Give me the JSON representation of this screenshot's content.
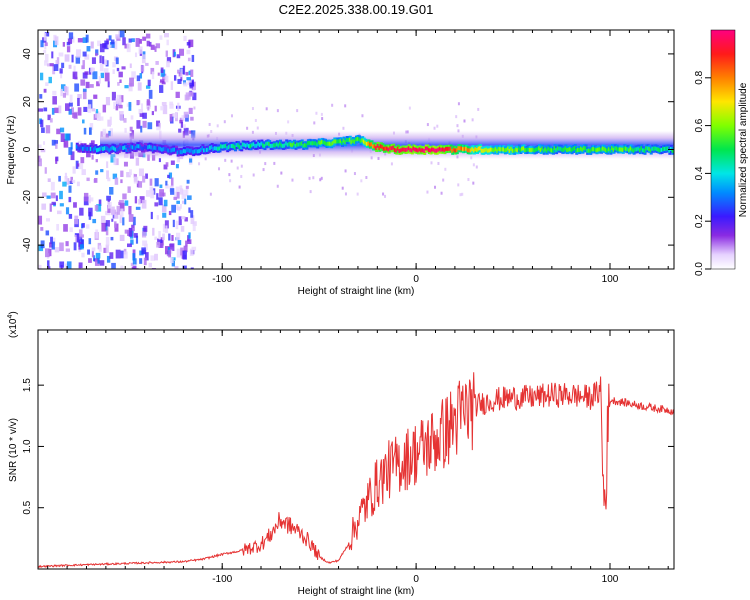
{
  "title": "C2E2.2025.338.00.19.G01",
  "colors": {
    "snr_line": "#e53333",
    "background": "#ffffff",
    "axis": "#000000"
  },
  "chart_data": [
    {
      "type": "heatmap",
      "xlabel": "Height of straight line (km)",
      "ylabel": "Frequency (Hz)",
      "xlim": [
        -195,
        133
      ],
      "ylim": [
        -50,
        50
      ],
      "x_ticks": [
        -100,
        0,
        100
      ],
      "x_tick_labels": [
        "-100",
        "0",
        "100"
      ],
      "y_ticks": [
        -40,
        -20,
        0,
        20,
        40
      ],
      "y_tick_labels": [
        "-40",
        "-20",
        "0",
        "20",
        "40"
      ],
      "colorbar": {
        "label": "Normalized spectral amplitude",
        "range": [
          0,
          1
        ],
        "ticks": [
          0.0,
          0.2,
          0.4,
          0.6,
          0.8
        ],
        "tick_labels": [
          "0.0",
          "0.2",
          "0.4",
          "0.6",
          "0.8"
        ],
        "colormap": "rainbow (white-purple-blue-cyan-green-yellow-red-magenta)"
      },
      "ridge": {
        "description": "main spectral line near 0 Hz",
        "x": [
          -175,
          -160,
          -140,
          -120,
          -100,
          -80,
          -60,
          -40,
          -30,
          -20,
          -10,
          0,
          10,
          20,
          40,
          60,
          80,
          100,
          133
        ],
        "freq": [
          1,
          0,
          1,
          -1,
          1,
          2,
          2,
          3,
          4,
          1,
          0,
          0,
          0,
          0,
          0,
          0,
          0,
          0,
          0
        ],
        "amplitude": [
          0.3,
          0.35,
          0.3,
          0.3,
          0.4,
          0.45,
          0.5,
          0.55,
          0.55,
          0.9,
          0.95,
          1.0,
          1.0,
          0.85,
          0.6,
          0.55,
          0.5,
          0.55,
          0.45
        ]
      }
    },
    {
      "type": "line",
      "xlabel": "Height of straight line (km)",
      "ylabel": "SNR (10 * v/v)",
      "y_scale_label": "(x10",
      "y_scale_exponent": "4",
      "xlim": [
        -195,
        133
      ],
      "ylim": [
        0,
        1.95
      ],
      "x_ticks": [
        -100,
        0,
        100
      ],
      "x_tick_labels": [
        "-100",
        "0",
        "100"
      ],
      "y_ticks": [
        0.5,
        1.0,
        1.5
      ],
      "y_tick_labels": [
        "0.5",
        "1.0",
        "1.5"
      ],
      "series": [
        {
          "name": "SNR",
          "x": [
            -195,
            -180,
            -160,
            -140,
            -120,
            -110,
            -100,
            -90,
            -80,
            -75,
            -70,
            -65,
            -60,
            -55,
            -50,
            -45,
            -40,
            -35,
            -30,
            -25,
            -20,
            -15,
            -10,
            -5,
            0,
            5,
            10,
            15,
            20,
            25,
            30,
            40,
            50,
            60,
            70,
            80,
            90,
            95,
            97,
            100,
            110,
            120,
            133
          ],
          "y": [
            0.02,
            0.03,
            0.04,
            0.05,
            0.06,
            0.08,
            0.12,
            0.15,
            0.2,
            0.28,
            0.4,
            0.35,
            0.3,
            0.22,
            0.1,
            0.05,
            0.07,
            0.2,
            0.4,
            0.55,
            0.7,
            0.8,
            0.85,
            0.9,
            0.95,
            1.0,
            1.05,
            1.12,
            1.2,
            1.28,
            1.33,
            1.38,
            1.4,
            1.4,
            1.42,
            1.42,
            1.4,
            1.45,
            0.5,
            1.38,
            1.35,
            1.32,
            1.29
          ]
        }
      ]
    }
  ]
}
